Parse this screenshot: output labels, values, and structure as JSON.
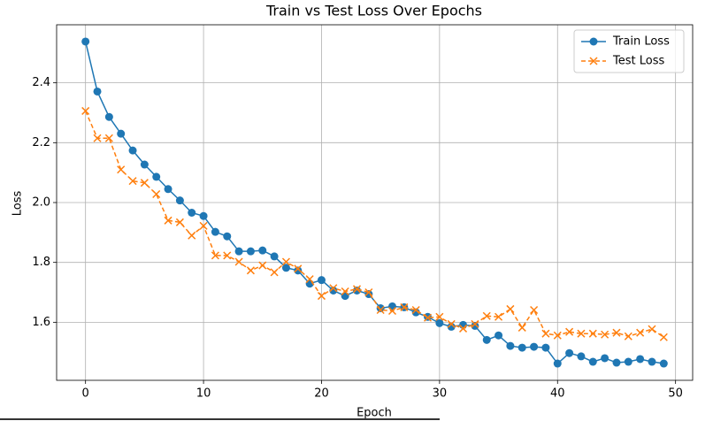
{
  "chart_data": {
    "type": "line",
    "title": "Train vs Test Loss Over Epochs",
    "x_label": "Epoch",
    "y_label": "Loss",
    "x": [
      0,
      1,
      2,
      3,
      4,
      5,
      6,
      7,
      8,
      9,
      10,
      11,
      12,
      13,
      14,
      15,
      16,
      17,
      18,
      19,
      20,
      21,
      22,
      23,
      24,
      25,
      26,
      27,
      28,
      29,
      30,
      31,
      32,
      33,
      34,
      35,
      36,
      37,
      38,
      39,
      40,
      41,
      42,
      43,
      44,
      45,
      46,
      47,
      48,
      49
    ],
    "series": [
      {
        "name": "Train Loss",
        "color": "#1f77b4",
        "marker": "o",
        "dashed": false,
        "values": [
          2.538,
          2.371,
          2.286,
          2.23,
          2.174,
          2.127,
          2.086,
          2.045,
          2.007,
          1.966,
          1.955,
          1.902,
          1.887,
          1.837,
          1.837,
          1.84,
          1.82,
          1.782,
          1.773,
          1.729,
          1.741,
          1.706,
          1.688,
          1.706,
          1.694,
          1.647,
          1.653,
          1.65,
          1.633,
          1.618,
          1.597,
          1.585,
          1.591,
          1.588,
          1.541,
          1.556,
          1.521,
          1.515,
          1.518,
          1.515,
          1.462,
          1.497,
          1.486,
          1.468,
          1.48,
          1.465,
          1.468,
          1.477,
          1.468,
          1.462
        ]
      },
      {
        "name": "Test Loss",
        "color": "#ff7f0e",
        "marker": "x",
        "dashed": true,
        "values": [
          2.306,
          2.215,
          2.215,
          2.11,
          2.072,
          2.066,
          2.028,
          1.94,
          1.934,
          1.89,
          1.922,
          1.823,
          1.823,
          1.802,
          1.773,
          1.79,
          1.767,
          1.802,
          1.779,
          1.744,
          1.688,
          1.714,
          1.703,
          1.711,
          1.7,
          1.641,
          1.638,
          1.65,
          1.641,
          1.615,
          1.618,
          1.594,
          1.579,
          1.594,
          1.621,
          1.618,
          1.644,
          1.582,
          1.641,
          1.562,
          1.556,
          1.568,
          1.562,
          1.562,
          1.559,
          1.565,
          1.553,
          1.565,
          1.577,
          1.55
        ]
      }
    ],
    "xlim": [
      -2.45,
      51.45
    ],
    "ylim": [
      1.406,
      2.594
    ],
    "xticks": [
      0,
      10,
      20,
      30,
      40,
      50
    ],
    "yticks": [
      1.6,
      1.8,
      {
        "value": 2.0,
        "label": "2.0"
      },
      2.2,
      2.4
    ],
    "grid": true,
    "legend": "upper right"
  }
}
